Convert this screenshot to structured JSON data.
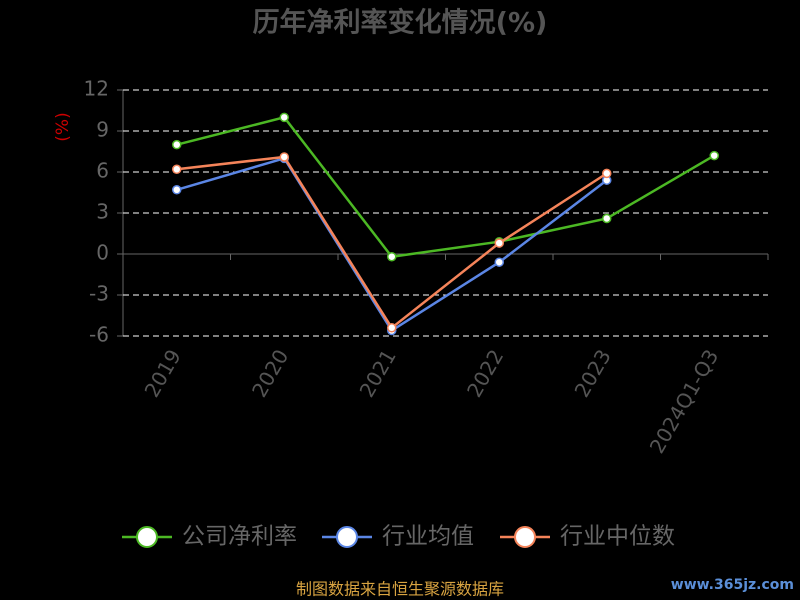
{
  "chart_data": {
    "type": "line",
    "title": "历年净利率变化情况(%)",
    "y_label": "(%)",
    "categories": [
      "2019",
      "2020",
      "2021",
      "2022",
      "2023",
      "2024Q1-Q3"
    ],
    "series": [
      {
        "name": "公司净利率",
        "color": "#4cb824",
        "values": [
          8.0,
          10.0,
          -0.2,
          0.9,
          2.6,
          7.2
        ]
      },
      {
        "name": "行业均值",
        "color": "#5b86e5",
        "values": [
          4.7,
          7.0,
          -5.6,
          -0.6,
          5.4,
          null
        ]
      },
      {
        "name": "行业中位数",
        "color": "#f5845a",
        "values": [
          6.2,
          7.1,
          -5.4,
          0.8,
          5.9,
          null
        ]
      }
    ],
    "ylim": [
      -6,
      12
    ],
    "yticks": [
      12,
      9,
      6,
      3,
      0,
      -3,
      -6
    ],
    "grid": true,
    "source": "制图数据来自恒生聚源数据库",
    "watermark": "www.365jz.com"
  }
}
